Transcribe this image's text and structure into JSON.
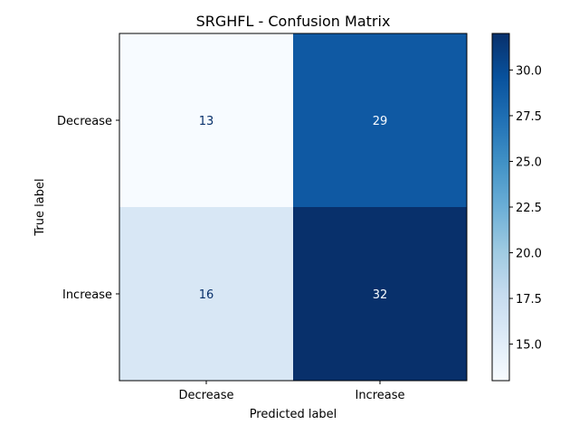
{
  "chart_data": {
    "type": "heatmap",
    "title": "SRGHFL - Confusion Matrix",
    "xlabel": "Predicted label",
    "ylabel": "True label",
    "x_categories": [
      "Decrease",
      "Increase"
    ],
    "y_categories": [
      "Decrease",
      "Increase"
    ],
    "values": [
      [
        13,
        29
      ],
      [
        16,
        32
      ]
    ],
    "colormap": "Blues",
    "colorbar": {
      "range": [
        13,
        32
      ],
      "ticks": [
        "15.0",
        "17.5",
        "20.0",
        "22.5",
        "25.0",
        "27.5",
        "30.0"
      ]
    },
    "grid": false
  }
}
